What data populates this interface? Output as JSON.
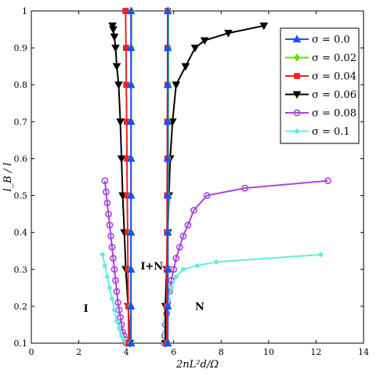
{
  "chart_data": {
    "type": "line",
    "xlabel": "2nL²d/Ω",
    "ylabel": "l_B / l",
    "xlim": [
      0,
      14
    ],
    "ylim": [
      0.1,
      1
    ],
    "xticks": [
      "0",
      "2",
      "4",
      "6",
      "8",
      "10",
      "12",
      "14"
    ],
    "yticks": [
      "0.1",
      "0.2",
      "0.3",
      "0.4",
      "0.5",
      "0.6",
      "0.7",
      "0.8",
      "0.9",
      "1"
    ],
    "grid": false,
    "legend_position": "top-right",
    "annotations": [
      {
        "text": "I",
        "x": 2.2,
        "y": 0.185
      },
      {
        "text": "I+N",
        "x": 4.6,
        "y": 0.3
      },
      {
        "text": "N",
        "x": 6.9,
        "y": 0.19
      }
    ],
    "series": [
      {
        "name": "σ = 0.0",
        "color": "#1f4fff",
        "marker": "triangle-up",
        "branches": [
          {
            "x": [
              4.2,
              4.2,
              4.2,
              4.2,
              4.2,
              4.2,
              4.2,
              4.2,
              4.2,
              4.2
            ],
            "y": [
              0.1,
              0.2,
              0.3,
              0.4,
              0.5,
              0.6,
              0.7,
              0.8,
              0.9,
              1.0
            ]
          },
          {
            "x": [
              5.75,
              5.75,
              5.75,
              5.75,
              5.75,
              5.75,
              5.75,
              5.75,
              5.75,
              5.75
            ],
            "y": [
              0.1,
              0.2,
              0.3,
              0.4,
              0.5,
              0.6,
              0.7,
              0.8,
              0.9,
              1.0
            ]
          }
        ]
      },
      {
        "name": "σ = 0.02",
        "color": "#66dd00",
        "marker": "diamond",
        "branches": [
          {
            "x": [
              4.18,
              4.18,
              4.19,
              4.19,
              4.2,
              4.2,
              4.21,
              4.21,
              4.22,
              4.22
            ],
            "y": [
              0.1,
              0.2,
              0.3,
              0.4,
              0.5,
              0.6,
              0.7,
              0.8,
              0.9,
              1.0
            ]
          },
          {
            "x": [
              5.75,
              5.75,
              5.76,
              5.76,
              5.77,
              5.77,
              5.77,
              5.78,
              5.78,
              5.78
            ],
            "y": [
              0.1,
              0.2,
              0.3,
              0.4,
              0.5,
              0.6,
              0.7,
              0.8,
              0.9,
              1.0
            ]
          }
        ]
      },
      {
        "name": "σ = 0.04",
        "color": "#ee2222",
        "marker": "square",
        "branches": [
          {
            "x": [
              4.1,
              4.09,
              4.07,
              4.06,
              4.04,
              4.03,
              4.02,
              4.0,
              3.99,
              3.97
            ],
            "y": [
              0.1,
              0.2,
              0.3,
              0.4,
              0.5,
              0.6,
              0.7,
              0.8,
              0.9,
              1.0
            ]
          },
          {
            "x": [
              5.7,
              5.71,
              5.71,
              5.72,
              5.72,
              5.73,
              5.73,
              5.74,
              5.74,
              5.75
            ],
            "y": [
              0.1,
              0.2,
              0.3,
              0.4,
              0.5,
              0.6,
              0.7,
              0.8,
              0.9,
              1.0
            ]
          }
        ]
      },
      {
        "name": "σ = 0.06",
        "color": "#000000",
        "marker": "triangle-down",
        "branches": [
          {
            "x": [
              4.15,
              4.08,
              3.98,
              3.92,
              3.85,
              3.8,
              3.75,
              3.68,
              3.6,
              3.55,
              3.5,
              3.45,
              3.42
            ],
            "y": [
              0.1,
              0.2,
              0.3,
              0.4,
              0.5,
              0.6,
              0.7,
              0.8,
              0.85,
              0.9,
              0.93,
              0.95,
              0.96
            ]
          },
          {
            "x": [
              5.65,
              5.65,
              5.7,
              5.75,
              5.8,
              5.85,
              5.95,
              6.1,
              6.5,
              6.9,
              7.3,
              8.3,
              9.8
            ],
            "y": [
              0.1,
              0.2,
              0.3,
              0.4,
              0.5,
              0.6,
              0.7,
              0.8,
              0.85,
              0.9,
              0.92,
              0.94,
              0.96
            ]
          }
        ]
      },
      {
        "name": "σ = 0.08",
        "color": "#aa44dd",
        "marker": "circle",
        "branches": [
          {
            "x": [
              3.1,
              3.15,
              3.2,
              3.25,
              3.3,
              3.35,
              3.4,
              3.45,
              3.5,
              3.55,
              3.6,
              3.65,
              3.7,
              3.75,
              3.8,
              3.85,
              3.9,
              3.95,
              4.0
            ],
            "y": [
              0.54,
              0.51,
              0.48,
              0.45,
              0.42,
              0.39,
              0.36,
              0.33,
              0.3,
              0.27,
              0.24,
              0.21,
              0.19,
              0.17,
              0.15,
              0.13,
              0.12,
              0.11,
              0.1
            ]
          },
          {
            "x": [
              5.6,
              5.62,
              5.65,
              5.7,
              5.75,
              5.82,
              5.9,
              6.0,
              6.1,
              6.25,
              6.4,
              6.6,
              6.85,
              7.4,
              9.0,
              12.5
            ],
            "y": [
              0.1,
              0.12,
              0.15,
              0.18,
              0.21,
              0.24,
              0.27,
              0.3,
              0.33,
              0.36,
              0.39,
              0.42,
              0.46,
              0.5,
              0.52,
              0.54
            ]
          }
        ]
      },
      {
        "name": "σ = 0.1",
        "color": "#66eedd",
        "marker": "dot",
        "branches": [
          {
            "x": [
              3.0,
              3.1,
              3.2,
              3.3,
              3.4,
              3.5,
              3.6,
              3.7,
              3.8,
              3.9,
              4.0
            ],
            "y": [
              0.34,
              0.31,
              0.28,
              0.25,
              0.22,
              0.19,
              0.16,
              0.14,
              0.12,
              0.11,
              0.1
            ]
          },
          {
            "x": [
              5.6,
              5.62,
              5.65,
              5.7,
              5.78,
              5.9,
              6.1,
              6.4,
              7.0,
              7.8,
              12.2
            ],
            "y": [
              0.1,
              0.13,
              0.16,
              0.19,
              0.22,
              0.25,
              0.28,
              0.3,
              0.31,
              0.32,
              0.34
            ]
          }
        ]
      }
    ]
  }
}
